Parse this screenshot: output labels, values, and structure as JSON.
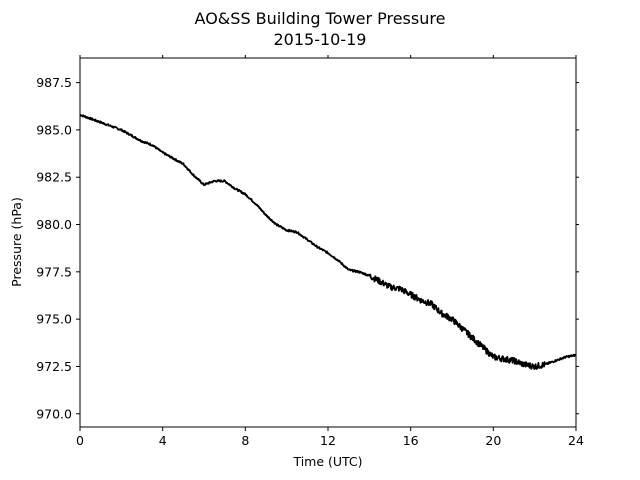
{
  "chart_data": {
    "type": "line",
    "title": "AO&SS Building Tower Pressure",
    "subtitle": "2015-10-19",
    "xlabel": "Time (UTC)",
    "ylabel": "Pressure (hPa)",
    "xlim": [
      0,
      24
    ],
    "ylim": [
      969.3,
      988.8
    ],
    "xticks": [
      0,
      4,
      8,
      12,
      16,
      20,
      24
    ],
    "xtick_labels": [
      "0",
      "4",
      "8",
      "12",
      "16",
      "20",
      "24"
    ],
    "yticks": [
      970.0,
      972.5,
      975.0,
      977.5,
      980.0,
      982.5,
      985.0,
      987.5
    ],
    "ytick_labels": [
      "970.0",
      "972.5",
      "975.0",
      "977.5",
      "980.0",
      "982.5",
      "985.0",
      "987.5"
    ],
    "grid": false,
    "line_color": "#000000",
    "series": [
      {
        "x": [
          0,
          0.5,
          1,
          1.5,
          2,
          2.5,
          3,
          3.5,
          4,
          4.5,
          5,
          5.5,
          6,
          6.5,
          7,
          7.5,
          8,
          8.5,
          9,
          9.5,
          10,
          10.5,
          11,
          11.5,
          12,
          12.5,
          13,
          13.5,
          14,
          14.5,
          15,
          15.5,
          16,
          16.5,
          17,
          17.5,
          18,
          18.5,
          19,
          19.5,
          20,
          20.5,
          21,
          21.5,
          22,
          22.5,
          23,
          23.5,
          24
        ],
        "y": [
          985.8,
          985.6,
          985.4,
          985.2,
          985.0,
          984.7,
          984.4,
          984.2,
          983.8,
          983.5,
          983.2,
          982.6,
          982.1,
          982.3,
          982.3,
          981.9,
          981.6,
          981.1,
          980.5,
          980.0,
          979.7,
          979.6,
          979.2,
          978.8,
          978.5,
          978.1,
          977.6,
          977.5,
          977.3,
          977.0,
          976.7,
          976.6,
          976.3,
          976.0,
          975.8,
          975.3,
          975.0,
          974.5,
          974.0,
          973.5,
          973.0,
          972.9,
          972.8,
          972.6,
          972.5,
          972.6,
          972.8,
          973.0,
          973.1
        ]
      }
    ]
  }
}
